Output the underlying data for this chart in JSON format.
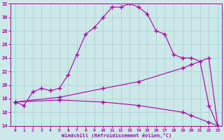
{
  "line1_x": [
    0,
    1,
    2,
    3,
    4,
    5,
    6,
    7,
    8,
    9,
    10,
    11,
    12,
    13,
    14,
    15,
    16,
    17,
    18,
    19,
    20,
    21,
    22,
    23
  ],
  "line1_y": [
    17.5,
    17.0,
    19.0,
    19.5,
    19.2,
    19.5,
    21.5,
    24.5,
    27.5,
    28.5,
    30.0,
    31.5,
    31.5,
    32.0,
    31.5,
    30.5,
    28.0,
    27.5,
    24.5,
    24.0,
    24.0,
    23.5,
    17.0,
    14.0
  ],
  "line2_x": [
    0,
    5,
    10,
    14,
    19,
    20,
    22,
    23
  ],
  "line2_y": [
    17.5,
    18.2,
    19.5,
    20.5,
    22.5,
    23.0,
    24.0,
    14.0
  ],
  "line3_x": [
    0,
    5,
    10,
    14,
    19,
    20,
    22,
    23
  ],
  "line3_y": [
    17.5,
    17.8,
    17.5,
    17.0,
    16.0,
    15.5,
    14.5,
    14.0
  ],
  "line_color": "#aa00aa",
  "bg_color": "#cce8e8",
  "grid_color": "#aacccc",
  "xlabel": "Windchill (Refroidissement éolien,°C)",
  "xlim": [
    -0.5,
    23.5
  ],
  "ylim": [
    14,
    32
  ],
  "yticks": [
    14,
    16,
    18,
    20,
    22,
    24,
    26,
    28,
    30,
    32
  ],
  "xticks": [
    0,
    1,
    2,
    3,
    4,
    5,
    6,
    7,
    8,
    9,
    10,
    11,
    12,
    13,
    14,
    15,
    16,
    17,
    18,
    19,
    20,
    21,
    22,
    23
  ]
}
